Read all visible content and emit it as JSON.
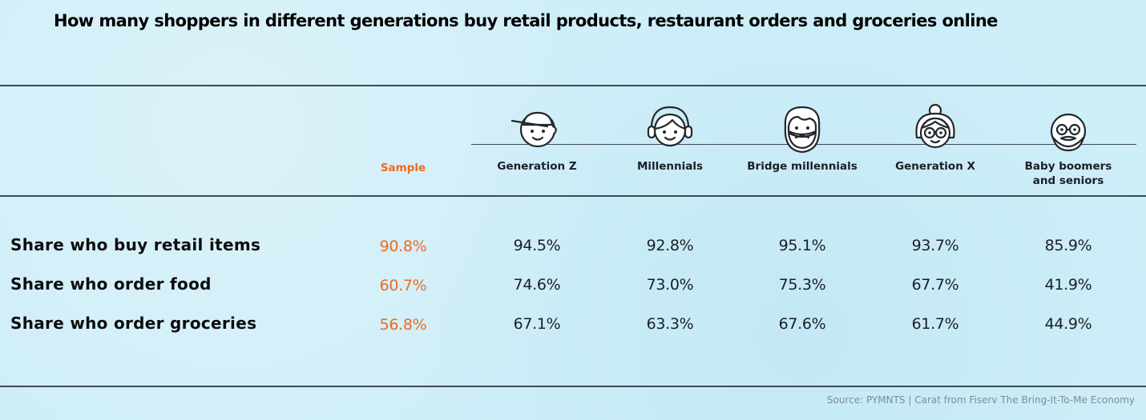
{
  "title": "How many shoppers in different generations buy retail products, restaurant orders and groceries online",
  "chart_data": {
    "type": "table",
    "title": "How many shoppers in different generations buy retail products, restaurant orders and groceries online",
    "columns": [
      {
        "label": "Sample",
        "icon": "none"
      },
      {
        "label": "Generation Z",
        "icon": "cap-face-icon"
      },
      {
        "label": "Millennials",
        "icon": "headset-face-icon"
      },
      {
        "label": "Bridge millennials",
        "icon": "bearded-face-icon"
      },
      {
        "label": "Generation X",
        "icon": "bun-glasses-face-icon"
      },
      {
        "label": "Baby boomers and seniors",
        "icon": "glasses-beard-face-icon"
      }
    ],
    "rows": [
      {
        "label": "Share who buy retail items",
        "values": [
          "90.8%",
          "94.5%",
          "92.8%",
          "95.1%",
          "93.7%",
          "85.9%"
        ]
      },
      {
        "label": "Share who order food",
        "values": [
          "60.7%",
          "74.6%",
          "73.0%",
          "75.3%",
          "67.7%",
          "41.9%"
        ]
      },
      {
        "label": "Share who order groceries",
        "values": [
          "56.8%",
          "67.1%",
          "63.3%",
          "67.6%",
          "61.7%",
          "44.9%"
        ]
      }
    ],
    "highlight_color": "#ee6a1f"
  },
  "source": "Source: PYMNTS | Carat from Fiserv The Bring-It-To-Me Economy",
  "colors": {
    "background": "#cfeef8",
    "accent": "#ee6a1f",
    "rule": "#3c4a55"
  }
}
